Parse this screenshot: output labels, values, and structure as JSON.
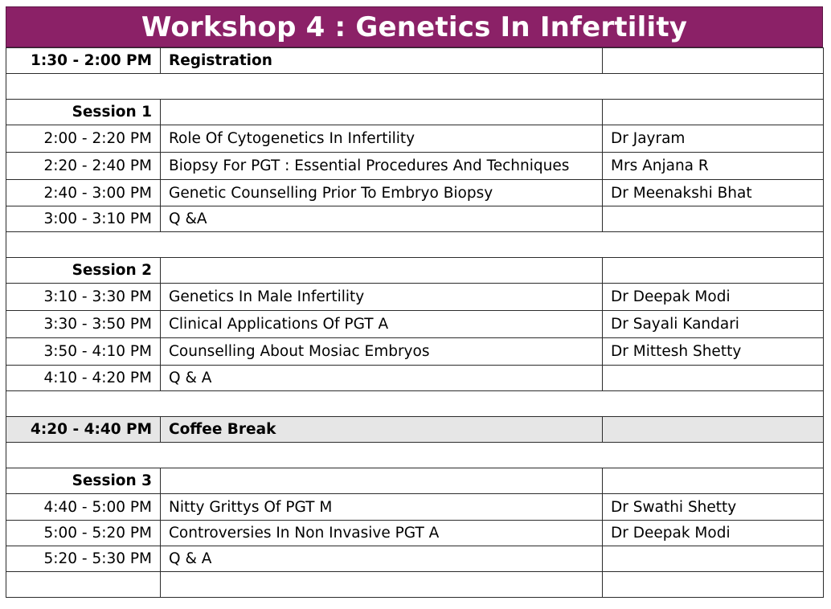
{
  "title": "Workshop 4 : Genetics In Infertility",
  "colors": {
    "title_bg": "#8b2167",
    "title_text": "#ffffff",
    "shaded_row": "#e6e6e6",
    "grid_line": "#2b2b2b"
  },
  "rows": [
    {
      "time": "1:30 - 2:00 PM",
      "topic": "Registration",
      "speaker": "",
      "bold": true,
      "shaded": false
    },
    {
      "time": "",
      "topic": "",
      "speaker": "",
      "bold": false,
      "shaded": false,
      "spacer": true
    },
    {
      "time": "Session 1",
      "topic": "",
      "speaker": "",
      "bold": true,
      "shaded": false
    },
    {
      "time": "2:00 - 2:20 PM",
      "topic": "Role Of Cytogenetics In Infertility",
      "speaker": "Dr Jayram",
      "bold": false,
      "shaded": false
    },
    {
      "time": "2:20 - 2:40 PM",
      "topic": "Biopsy For PGT : Essential Procedures And Techniques",
      "speaker": "Mrs Anjana R",
      "bold": false,
      "shaded": false
    },
    {
      "time": "2:40 - 3:00 PM",
      "topic": "Genetic Counselling Prior To Embryo Biopsy",
      "speaker": "Dr Meenakshi Bhat",
      "bold": false,
      "shaded": false
    },
    {
      "time": "3:00 - 3:10 PM",
      "topic": "Q &A",
      "speaker": "",
      "bold": false,
      "shaded": false
    },
    {
      "time": "",
      "topic": "",
      "speaker": "",
      "bold": false,
      "shaded": false,
      "spacer": true
    },
    {
      "time": "Session 2",
      "topic": "",
      "speaker": "",
      "bold": true,
      "shaded": false
    },
    {
      "time": "3:10 - 3:30 PM",
      "topic": "Genetics In Male Infertility",
      "speaker": "Dr Deepak Modi",
      "bold": false,
      "shaded": false
    },
    {
      "time": "3:30 - 3:50 PM",
      "topic": "Clinical  Applications Of PGT A",
      "speaker": "Dr Sayali Kandari",
      "bold": false,
      "shaded": false
    },
    {
      "time": "3:50 - 4:10 PM",
      "topic": "Counselling About Mosiac Embryos",
      "speaker": "Dr Mittesh Shetty",
      "bold": false,
      "shaded": false
    },
    {
      "time": "4:10 - 4:20 PM",
      "topic": "Q & A",
      "speaker": "",
      "bold": false,
      "shaded": false
    },
    {
      "time": "",
      "topic": "",
      "speaker": "",
      "bold": false,
      "shaded": false,
      "spacer": true
    },
    {
      "time": "4:20 - 4:40 PM",
      "topic": "Coffee Break",
      "speaker": "",
      "bold": true,
      "shaded": true
    },
    {
      "time": "",
      "topic": "",
      "speaker": "",
      "bold": false,
      "shaded": false,
      "spacer": true
    },
    {
      "time": "Session 3",
      "topic": "",
      "speaker": "",
      "bold": true,
      "shaded": false
    },
    {
      "time": "4:40 - 5:00 PM",
      "topic": "Nitty Grittys Of PGT M",
      "speaker": "Dr Swathi Shetty",
      "bold": false,
      "shaded": false
    },
    {
      "time": "5:00 - 5:20 PM",
      "topic": "Controversies In Non Invasive PGT A",
      "speaker": "Dr Deepak Modi",
      "bold": false,
      "shaded": false
    },
    {
      "time": "5:20 - 5:30 PM",
      "topic": "Q &  A",
      "speaker": "",
      "bold": false,
      "shaded": false
    },
    {
      "time": "",
      "topic": "",
      "speaker": "",
      "bold": false,
      "shaded": false
    }
  ]
}
